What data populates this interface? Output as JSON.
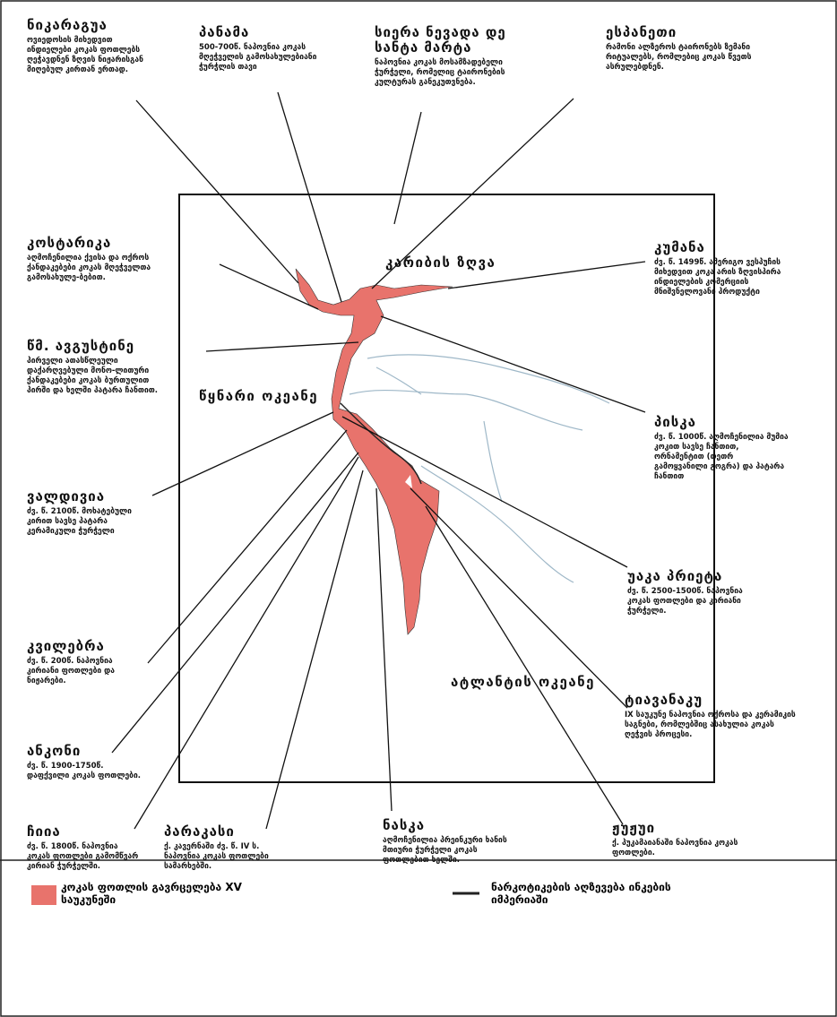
{
  "labels": [
    {
      "title": "ნიკარაგუა",
      "text": "ოვიედოსის მიხედვით ინდიელები კოკას ფოთლებს ღეჭავდნენ ზღვის ნიჟარისგან მიღებულ კირთან ერთად."
    },
    {
      "title": "პანამა",
      "text": "500-700წ. ნაპოვნია კოკას მღეჭველის გამოსახულებიანი ჭურჭლის თავი"
    },
    {
      "title": "სიერა ნევადა დე სანტა მარტა",
      "text": "ნაპოვნია კოკას მოსამზადებელი ჭურჭელი, რომელიც ტაირონების კულტურას განეკუთვნება."
    },
    {
      "title": "ესპანეთი",
      "text": "რამონი ალზეროს ტაირონებს ზემანი რიტუალებს, რომლებიც კოკას წვეთს ასრულებდნენ."
    },
    {
      "title": "კოსტარიკა",
      "text": "აღმოჩენილია ქვისა და ოქროს ქანდაკებები კოკას მღეჭველთა გამოსახულე-ბებით."
    },
    {
      "title": "წმ. ავგუსტინე",
      "text": "პირველი ათასწლეული დაქარღვებული მონო-ლითური ქანდაკებები კოკას ბურთულით პირში და ხელში პატარა ჩანთით."
    },
    {
      "title": "კუმანა",
      "text": "ძვ. წ. 1499წ. ამერიგო ვესპუჩის მიხედვით კოკა არის ზღვისპირა ინდიელების კომერციის მნიშვნელოვანი პროდუქტი"
    },
    {
      "title": "პისკა",
      "text": "ძვ. წ. 1000წ. აღმოჩენილია მუმია კოკით სავსე ჩანთით, ორნამენტით (თეთრ გამოყვანილი გოგრა) და პატარა ჩანთით"
    },
    {
      "title": "ვალდივია",
      "text": "ძვ. წ. 2100წ. მოხატებული კირით სავსე პატარა კერამიკული ჭურჭელი"
    },
    {
      "title": "უაკა პრიეტა",
      "text": "ძვ. წ. 2500-1500წ. ნაპოვნია კოკას ფოთლები და კირიანი ჭურჭელი."
    },
    {
      "title": "კვილებრა",
      "text": "ძვ. წ. 200წ. ნაპოვნია კირიანი ფოთლები და ნიჟარები."
    },
    {
      "title": "ტიავანაკუ",
      "text": "IX საუკუნე ნაპოვნია ოქროსა და კერამიკის საგნები, რომლებშიც ასახულია კოკას ღეჭვის პროცესი."
    },
    {
      "title": "ანკონი",
      "text": "ძვ. წ. 1900-1750წ. დაფქვილი კოკას ფოთლები."
    },
    {
      "title": "ჩიია",
      "text": "ძვ. წ. 1800წ. ნაპოვნია კოკას ფოთლები გამომწვარ კირიან ჭურჭელში."
    },
    {
      "title": "პარაკასი",
      "text": "ქ. კავერნაში ძვ. წ. IV ს. ნაპოვნია კოკას ფოთლები სამარხებში."
    },
    {
      "title": "ნასკა",
      "text": "აღმოჩენილია პრეინკური ხანის მთიური ჭურჭელი კოკას ფოთლებით ხელში."
    },
    {
      "title": "ჟუჟუი",
      "text": "ქ. პუკამაიანაში ნაპოვნია კოკას ფოთლები."
    }
  ],
  "oceans": [
    "კარიბის ზღვა",
    "წყნარი ოკეანე",
    "ატლანტის ოკეანე"
  ],
  "legend": [
    "კოკას ფოთლის გავრცელება XV საუკუნეში",
    "ნარკოტიკების აღზევება ინკების იმპერიაში"
  ]
}
